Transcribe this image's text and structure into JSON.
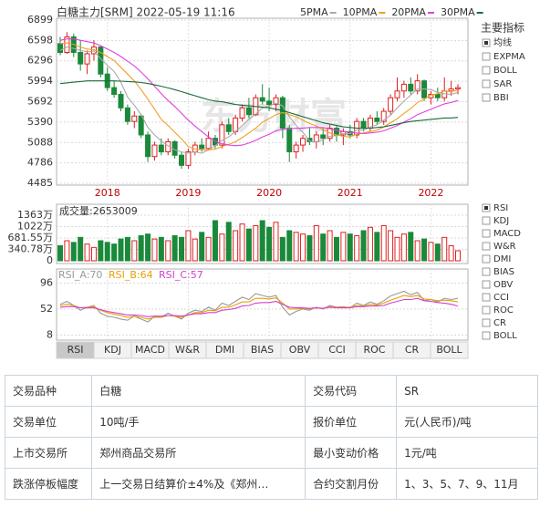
{
  "header": {
    "title": "白糖主力[SRM] 2022-05-19 11:16"
  },
  "chart_data": [
    {
      "type": "candlestick",
      "watermark": "东方财富",
      "grid": true,
      "legend": "top-right",
      "up_color": "#e02020",
      "down_color": "#1a8a3a",
      "categories": [
        null,
        null,
        null,
        null,
        null,
        null,
        null,
        "2018",
        null,
        null,
        null,
        null,
        null,
        null,
        null,
        null,
        null,
        null,
        null,
        "2019",
        null,
        null,
        null,
        null,
        null,
        null,
        null,
        null,
        null,
        null,
        null,
        "2020",
        null,
        null,
        null,
        null,
        null,
        null,
        null,
        null,
        null,
        null,
        null,
        "2021",
        null,
        null,
        null,
        null,
        null,
        null,
        null,
        null,
        null,
        null,
        null,
        "2022",
        null,
        null,
        null,
        null
      ],
      "open": [
        6550,
        6420,
        6650,
        6420,
        6250,
        6400,
        6500,
        6100,
        5900,
        5800,
        5600,
        5400,
        5480,
        5200,
        4880,
        5050,
        4950,
        5100,
        4900,
        4750,
        4950,
        5050,
        5000,
        5150,
        5050,
        5350,
        5250,
        5450,
        5600,
        5500,
        5750,
        5700,
        5650,
        5750,
        5300,
        4950,
        5050,
        5150,
        5100,
        5200,
        5150,
        5300,
        5200,
        5250,
        5200,
        5400,
        5300,
        5450,
        5400,
        5550,
        5750,
        5850,
        5950,
        5850,
        6000,
        5750,
        5800,
        5750,
        5850,
        5880
      ],
      "high": [
        6650,
        6720,
        6700,
        6600,
        6450,
        6600,
        6520,
        6200,
        6000,
        5850,
        5650,
        5550,
        5500,
        5250,
        5100,
        5150,
        5150,
        5120,
        4950,
        5000,
        5100,
        5150,
        5250,
        5200,
        5400,
        5450,
        5500,
        5650,
        5750,
        5800,
        5950,
        5900,
        5800,
        5780,
        5350,
        5100,
        5200,
        5300,
        5250,
        5300,
        5350,
        5350,
        5300,
        5350,
        5450,
        5450,
        5500,
        5550,
        5600,
        5800,
        6050,
        6000,
        6050,
        6100,
        6020,
        5850,
        5900,
        6050,
        6000,
        5950
      ],
      "low": [
        6380,
        6400,
        6350,
        6150,
        6100,
        6300,
        6050,
        5850,
        5750,
        5550,
        5350,
        5300,
        5150,
        4800,
        4820,
        4900,
        4900,
        4850,
        4700,
        4700,
        4900,
        4950,
        4980,
        5000,
        5000,
        5200,
        5200,
        5400,
        5450,
        5480,
        5650,
        5550,
        5550,
        5150,
        4800,
        4850,
        4950,
        5050,
        5000,
        5050,
        5100,
        5100,
        5050,
        5150,
        5150,
        5250,
        5250,
        5350,
        5350,
        5500,
        5700,
        5750,
        5800,
        5800,
        5700,
        5650,
        5700,
        5700,
        5780,
        5800
      ],
      "close": [
        6420,
        6650,
        6420,
        6250,
        6400,
        6500,
        6100,
        5900,
        5800,
        5600,
        5400,
        5480,
        5200,
        4880,
        5050,
        4950,
        5100,
        4900,
        4750,
        4950,
        5050,
        5000,
        5150,
        5050,
        5350,
        5250,
        5450,
        5600,
        5500,
        5750,
        5700,
        5650,
        5750,
        5300,
        4950,
        5050,
        5150,
        5100,
        5200,
        5150,
        5300,
        5200,
        5250,
        5200,
        5400,
        5300,
        5450,
        5400,
        5550,
        5750,
        5850,
        5950,
        5850,
        6000,
        5750,
        5800,
        5750,
        5850,
        5880,
        5900
      ],
      "series": [
        {
          "name": "5PMA",
          "color": "#aaaaaa",
          "values": [
            6450,
            6500,
            6480,
            6450,
            6430,
            6440,
            6330,
            6230,
            6140,
            5980,
            5760,
            5640,
            5500,
            5310,
            5200,
            5110,
            5040,
            4980,
            4950,
            4930,
            4950,
            4930,
            4980,
            5040,
            5120,
            5170,
            5250,
            5340,
            5430,
            5510,
            5600,
            5630,
            5670,
            5630,
            5470,
            5340,
            5240,
            5110,
            5090,
            5130,
            5180,
            5190,
            5220,
            5220,
            5270,
            5270,
            5320,
            5350,
            5420,
            5490,
            5600,
            5700,
            5790,
            5880,
            5880,
            5870,
            5830,
            5810,
            5800,
            5830
          ]
        },
        {
          "name": "10PMA",
          "color": "#f0a020",
          "values": [
            6550,
            6560,
            6540,
            6500,
            6470,
            6460,
            6420,
            6360,
            6300,
            6200,
            6100,
            6000,
            5870,
            5730,
            5580,
            5430,
            5340,
            5240,
            5140,
            5030,
            4990,
            4980,
            4980,
            4990,
            5030,
            5060,
            5100,
            5160,
            5230,
            5300,
            5390,
            5440,
            5500,
            5530,
            5500,
            5470,
            5420,
            5370,
            5330,
            5280,
            5230,
            5200,
            5180,
            5170,
            5210,
            5230,
            5250,
            5270,
            5320,
            5380,
            5440,
            5520,
            5590,
            5680,
            5730,
            5790,
            5810,
            5850,
            5840,
            5860
          ]
        },
        {
          "name": "20PMA",
          "color": "#e040e0",
          "values": [
            6600,
            6620,
            6620,
            6600,
            6580,
            6560,
            6520,
            6470,
            6420,
            6360,
            6290,
            6220,
            6130,
            6030,
            5920,
            5810,
            5710,
            5620,
            5520,
            5420,
            5330,
            5250,
            5170,
            5110,
            5070,
            5050,
            5040,
            5050,
            5080,
            5120,
            5170,
            5210,
            5260,
            5280,
            5290,
            5300,
            5300,
            5310,
            5310,
            5310,
            5290,
            5270,
            5250,
            5240,
            5230,
            5220,
            5230,
            5240,
            5260,
            5300,
            5340,
            5390,
            5440,
            5500,
            5540,
            5580,
            5620,
            5660,
            5680,
            5710
          ]
        },
        {
          "name": "30PMA",
          "color": "#1a6b3a",
          "values": [
            5960,
            5970,
            5980,
            5990,
            6000,
            6000,
            6000,
            6000,
            6000,
            5995,
            5990,
            5985,
            5975,
            5960,
            5940,
            5920,
            5895,
            5870,
            5840,
            5810,
            5780,
            5750,
            5720,
            5700,
            5690,
            5670,
            5650,
            5640,
            5630,
            5620,
            5610,
            5600,
            5580,
            5560,
            5530,
            5500,
            5470,
            5440,
            5410,
            5380,
            5360,
            5340,
            5320,
            5310,
            5300,
            5300,
            5300,
            5310,
            5320,
            5340,
            5360,
            5380,
            5400,
            5410,
            5420,
            5430,
            5440,
            5450,
            5450,
            5460
          ]
        }
      ],
      "ylim": [
        4485,
        6899
      ],
      "yticks": [
        6899,
        6598,
        6296,
        5994,
        5692,
        5390,
        5088,
        4786,
        4485
      ]
    },
    {
      "type": "bar",
      "title": "成交量:2653009",
      "grid": true,
      "values": [
        450,
        600,
        550,
        700,
        500,
        400,
        600,
        550,
        500,
        650,
        700,
        600,
        750,
        800,
        650,
        700,
        600,
        750,
        700,
        900,
        650,
        850,
        700,
        1200,
        800,
        1150,
        900,
        1100,
        950,
        1050,
        1200,
        1000,
        1150,
        700,
        900,
        850,
        800,
        750,
        1050,
        800,
        900,
        700,
        850,
        800,
        750,
        900,
        1000,
        850,
        1050,
        900,
        700,
        800,
        850,
        600,
        650,
        550,
        500,
        700,
        450,
        300
      ],
      "ylim": [
        0,
        1363
      ],
      "yticks": [
        {
          "value": 1363,
          "label": "1363万"
        },
        {
          "value": 1022,
          "label": "1022万"
        },
        {
          "value": 681.55,
          "label": "681.55万"
        },
        {
          "value": 340.78,
          "label": "340.78万"
        },
        0
      ]
    },
    {
      "type": "line",
      "grid": true,
      "series": [
        {
          "name": "RSI_A:70",
          "color": "#999999",
          "values": [
            60,
            65,
            58,
            50,
            55,
            58,
            45,
            40,
            38,
            35,
            33,
            40,
            35,
            30,
            40,
            38,
            45,
            40,
            35,
            45,
            50,
            48,
            55,
            50,
            62,
            58,
            65,
            72,
            68,
            78,
            75,
            72,
            75,
            55,
            42,
            48,
            52,
            50,
            55,
            52,
            58,
            55,
            56,
            54,
            62,
            58,
            64,
            60,
            66,
            74,
            78,
            82,
            76,
            80,
            66,
            68,
            64,
            70,
            68,
            70
          ]
        },
        {
          "name": "RSI_B:64",
          "color": "#e8a000",
          "values": [
            58,
            60,
            58,
            54,
            55,
            56,
            50,
            46,
            43,
            41,
            38,
            40,
            38,
            35,
            38,
            38,
            41,
            40,
            38,
            42,
            46,
            46,
            50,
            49,
            55,
            55,
            59,
            64,
            64,
            70,
            70,
            69,
            71,
            62,
            52,
            52,
            53,
            52,
            54,
            53,
            56,
            55,
            55,
            55,
            58,
            57,
            60,
            59,
            62,
            67,
            71,
            75,
            73,
            75,
            69,
            68,
            66,
            67,
            66,
            64
          ]
        },
        {
          "name": "RSI_C:57",
          "color": "#d040d0",
          "values": [
            55,
            56,
            56,
            54,
            54,
            54,
            51,
            48,
            46,
            44,
            42,
            42,
            41,
            39,
            40,
            40,
            41,
            41,
            40,
            42,
            44,
            44,
            46,
            46,
            50,
            51,
            53,
            57,
            58,
            62,
            63,
            63,
            65,
            60,
            55,
            54,
            54,
            53,
            54,
            53,
            55,
            54,
            54,
            54,
            56,
            56,
            57,
            57,
            58,
            62,
            65,
            68,
            68,
            70,
            66,
            65,
            63,
            62,
            60,
            57
          ]
        }
      ],
      "ylim": [
        4,
        112
      ],
      "yticks": [
        96,
        52,
        8
      ]
    }
  ],
  "indicator_menu": {
    "title": "主要指标",
    "options": [
      "均线",
      "EXPMA",
      "BOLL",
      "SAR",
      "BBI"
    ],
    "selected": 0
  },
  "sub_menu": {
    "options": [
      "RSI",
      "KDJ",
      "MACD",
      "W&R",
      "DMI",
      "BIAS",
      "OBV",
      "CCI",
      "ROC",
      "CR",
      "BOLL"
    ],
    "selected": 0
  },
  "tabs": {
    "items": [
      "RSI",
      "KDJ",
      "MACD",
      "W&R",
      "DMI",
      "BIAS",
      "OBV",
      "CCI",
      "ROC",
      "CR",
      "BOLL"
    ],
    "selected": 0
  },
  "table": {
    "rows": [
      [
        "交易品种",
        "白糖",
        "交易代码",
        "SR"
      ],
      [
        "交易单位",
        "10吨/手",
        "报价单位",
        "元(人民币)/吨"
      ],
      [
        "上市交易所",
        "郑州商品交易所",
        "最小变动价格",
        "1元/吨"
      ],
      [
        "跌涨停板幅度",
        "上一交易日结算价±4%及《郑州…",
        "合约交割月份",
        "1、3、5、7、9、11月"
      ]
    ]
  }
}
